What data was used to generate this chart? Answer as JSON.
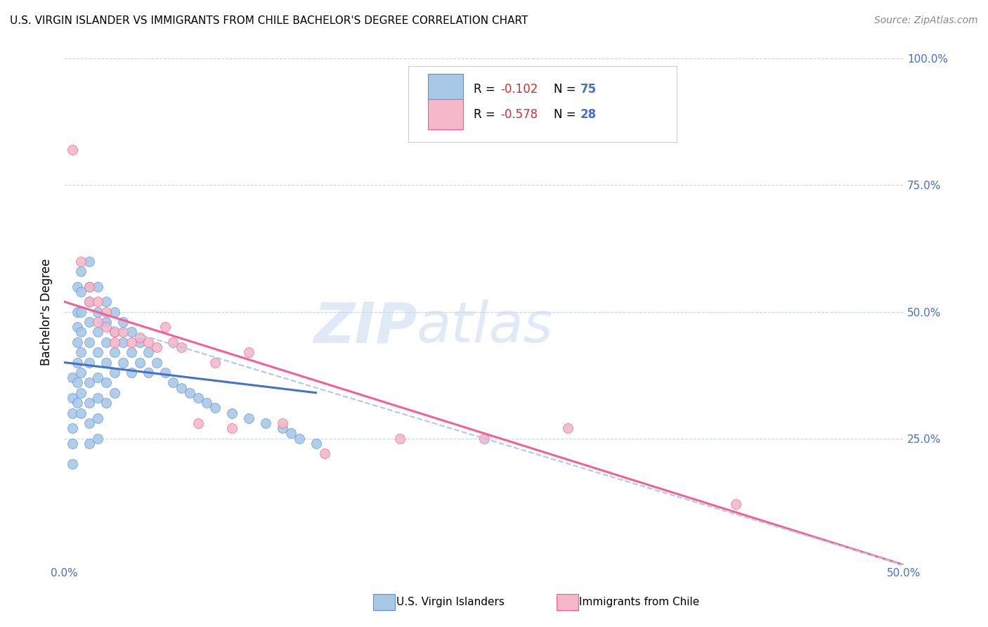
{
  "title": "U.S. VIRGIN ISLANDER VS IMMIGRANTS FROM CHILE BACHELOR'S DEGREE CORRELATION CHART",
  "source": "Source: ZipAtlas.com",
  "ylabel": "Bachelor's Degree",
  "xlim": [
    0.0,
    0.5
  ],
  "ylim": [
    0.0,
    1.0
  ],
  "xticks": [
    0.0,
    0.1,
    0.2,
    0.3,
    0.4,
    0.5
  ],
  "xticklabels": [
    "0.0%",
    "",
    "",
    "",
    "",
    "50.0%"
  ],
  "yticks": [
    0.0,
    0.25,
    0.5,
    0.75,
    1.0
  ],
  "yticklabels_right": [
    "",
    "25.0%",
    "50.0%",
    "75.0%",
    "100.0%"
  ],
  "blue_scatter_x": [
    0.005,
    0.005,
    0.005,
    0.005,
    0.005,
    0.005,
    0.008,
    0.008,
    0.008,
    0.008,
    0.008,
    0.008,
    0.008,
    0.01,
    0.01,
    0.01,
    0.01,
    0.01,
    0.01,
    0.01,
    0.01,
    0.015,
    0.015,
    0.015,
    0.015,
    0.015,
    0.015,
    0.015,
    0.015,
    0.015,
    0.015,
    0.02,
    0.02,
    0.02,
    0.02,
    0.02,
    0.02,
    0.02,
    0.02,
    0.025,
    0.025,
    0.025,
    0.025,
    0.025,
    0.025,
    0.03,
    0.03,
    0.03,
    0.03,
    0.03,
    0.035,
    0.035,
    0.035,
    0.04,
    0.04,
    0.04,
    0.045,
    0.045,
    0.05,
    0.05,
    0.055,
    0.06,
    0.065,
    0.07,
    0.075,
    0.08,
    0.085,
    0.09,
    0.1,
    0.11,
    0.12,
    0.13,
    0.135,
    0.14,
    0.15
  ],
  "blue_scatter_y": [
    0.37,
    0.33,
    0.3,
    0.27,
    0.24,
    0.2,
    0.55,
    0.5,
    0.47,
    0.44,
    0.4,
    0.36,
    0.32,
    0.58,
    0.54,
    0.5,
    0.46,
    0.42,
    0.38,
    0.34,
    0.3,
    0.6,
    0.55,
    0.52,
    0.48,
    0.44,
    0.4,
    0.36,
    0.32,
    0.28,
    0.24,
    0.55,
    0.5,
    0.46,
    0.42,
    0.37,
    0.33,
    0.29,
    0.25,
    0.52,
    0.48,
    0.44,
    0.4,
    0.36,
    0.32,
    0.5,
    0.46,
    0.42,
    0.38,
    0.34,
    0.48,
    0.44,
    0.4,
    0.46,
    0.42,
    0.38,
    0.44,
    0.4,
    0.42,
    0.38,
    0.4,
    0.38,
    0.36,
    0.35,
    0.34,
    0.33,
    0.32,
    0.31,
    0.3,
    0.29,
    0.28,
    0.27,
    0.26,
    0.25,
    0.24
  ],
  "pink_scatter_x": [
    0.005,
    0.01,
    0.015,
    0.015,
    0.02,
    0.02,
    0.025,
    0.025,
    0.03,
    0.03,
    0.035,
    0.04,
    0.045,
    0.05,
    0.055,
    0.06,
    0.065,
    0.07,
    0.08,
    0.09,
    0.1,
    0.11,
    0.13,
    0.155,
    0.2,
    0.25,
    0.3,
    0.4
  ],
  "pink_scatter_y": [
    0.82,
    0.6,
    0.55,
    0.52,
    0.52,
    0.48,
    0.5,
    0.47,
    0.46,
    0.44,
    0.46,
    0.44,
    0.45,
    0.44,
    0.43,
    0.47,
    0.44,
    0.43,
    0.28,
    0.4,
    0.27,
    0.42,
    0.28,
    0.22,
    0.25,
    0.25,
    0.27,
    0.12
  ],
  "blue_line_x": [
    0.0,
    0.15
  ],
  "blue_line_y": [
    0.4,
    0.34
  ],
  "pink_line_x": [
    0.0,
    0.5
  ],
  "pink_line_y": [
    0.52,
    0.0
  ],
  "blue_dashed_line_x": [
    0.02,
    0.5
  ],
  "blue_dashed_line_y": [
    0.48,
    0.0
  ],
  "blue_color": "#a8c8e8",
  "blue_edge_color": "#5b8dd9",
  "pink_color": "#f5b8c8",
  "pink_edge_color": "#e8608a",
  "blue_line_color": "#4472c4",
  "pink_line_color": "#f06292",
  "blue_dashed_color": "#b0c8e8",
  "watermark_zip": "ZIP",
  "watermark_atlas": "atlas",
  "legend_R1_label": "R = ",
  "legend_R1_val": "-0.102",
  "legend_N1_label": "N = ",
  "legend_N1_val": "75",
  "legend_R2_label": "R = ",
  "legend_R2_val": "-0.578",
  "legend_N2_label": "N = ",
  "legend_N2_val": "28",
  "legend_label1": "U.S. Virgin Islanders",
  "legend_label2": "Immigrants from Chile",
  "title_fontsize": 11,
  "axis_tick_color": "#4472c4",
  "grid_color": "#c8d4e8",
  "red_val_color": "#cc3333",
  "blue_n_color": "#4472c4"
}
